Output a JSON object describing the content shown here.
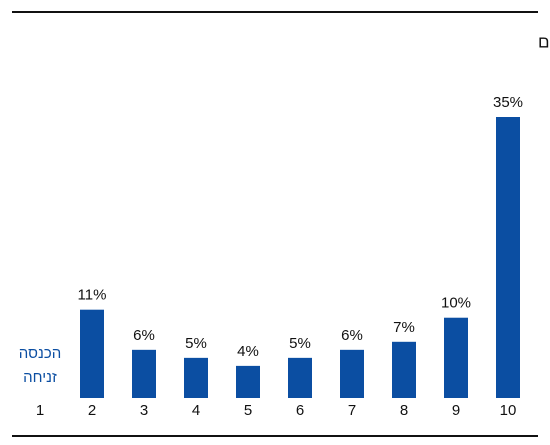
{
  "chart_data": {
    "type": "bar",
    "title": "שיעור ההכנסות מהון, לפי עשירונים",
    "categories": [
      "1",
      "2",
      "3",
      "4",
      "5",
      "6",
      "7",
      "8",
      "9",
      "10"
    ],
    "values": [
      null,
      11,
      6,
      5,
      4,
      5,
      6,
      7,
      10,
      35
    ],
    "value_labels": [
      null,
      "11%",
      "6%",
      "5%",
      "4%",
      "5%",
      "6%",
      "7%",
      "10%",
      "35%"
    ],
    "annotation": [
      "הכנסה",
      "זניחה"
    ],
    "color": "#0b4ea2",
    "ylim": [
      0,
      35
    ]
  }
}
